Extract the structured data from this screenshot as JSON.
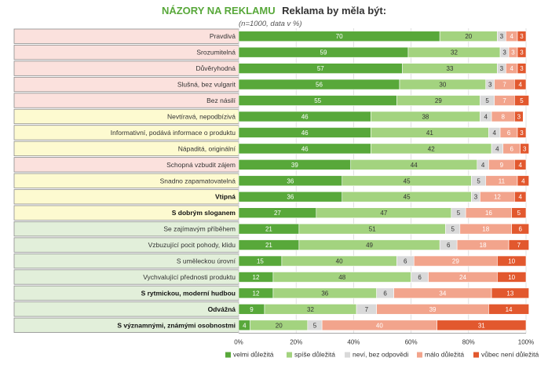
{
  "chart_data": {
    "type": "bar",
    "orientation": "horizontal",
    "stacked": true,
    "title_part1": "NÁZORY NA REKLAMU",
    "title_part2": "Reklama by měla být:",
    "subtitle": "(n=1000, data v %)",
    "xlabel": "",
    "ylabel": "",
    "xlim": [
      0,
      100
    ],
    "x_ticks": [
      "0%",
      "20%",
      "40%",
      "60%",
      "80%",
      "100%"
    ],
    "legend_position": "bottom",
    "categories": [
      "Pravdivá",
      "Srozumitelná",
      "Důvěryhodná",
      "Slušná, bez vulgarit",
      "Bez násilí",
      "Nevtíravá, nepodbízivá",
      "Informativní, podává informace o produktu",
      "Nápaditá, originální",
      "Schopná vzbudit zájem",
      "Snadno zapamatovatelná",
      "Vtipná",
      "S dobrým sloganem",
      "Se zajímavým příběhem",
      "Vzbuzující pocit pohody, klidu",
      "S uměleckou úrovní",
      "Vychvalující přednosti produktu",
      "S rytmickou, moderní hudbou",
      "Odvážná",
      "S významnými, známými osobnostmi"
    ],
    "bold_categories": [
      "Vtipná",
      "S dobrým sloganem",
      "S rytmickou, moderní hudbou",
      "Odvážná",
      "S významnými, známými osobnostmi"
    ],
    "row_backgrounds": [
      "#fbe1dd",
      "#fbe1dd",
      "#fbe1dd",
      "#fbe1dd",
      "#fbe1dd",
      "#fdfad0",
      "#fdfad0",
      "#fdfad0",
      "#fbe1dd",
      "#fdfad0",
      "#fdfad0",
      "#fdfad0",
      "#e2efda",
      "#e2efda",
      "#e2efda",
      "#e2efda",
      "#e2efda",
      "#e2efda",
      "#e2efda"
    ],
    "series": [
      {
        "name": "velmi důležitá",
        "color": "#58a83a",
        "label_color": "#ffffff",
        "values": [
          70,
          59,
          57,
          56,
          55,
          46,
          46,
          46,
          39,
          36,
          36,
          27,
          21,
          21,
          15,
          12,
          12,
          9,
          4
        ]
      },
      {
        "name": "spíše důležitá",
        "color": "#a3d37f",
        "label_color": "#333333",
        "values": [
          20,
          32,
          33,
          30,
          29,
          38,
          41,
          42,
          44,
          45,
          45,
          47,
          51,
          49,
          40,
          48,
          36,
          32,
          20
        ]
      },
      {
        "name": "neví, bez odpovědi",
        "color": "#d9d9d9",
        "label_color": "#333333",
        "values": [
          3,
          3,
          3,
          3,
          5,
          4,
          4,
          4,
          4,
          5,
          3,
          5,
          5,
          6,
          6,
          6,
          6,
          7,
          5
        ]
      },
      {
        "name": "málo důležitá",
        "color": "#f2a48c",
        "label_color": "#ffffff",
        "values": [
          4,
          3,
          4,
          7,
          7,
          8,
          6,
          6,
          9,
          11,
          12,
          16,
          18,
          18,
          29,
          24,
          34,
          39,
          40
        ]
      },
      {
        "name": "vůbec není důležitá",
        "color": "#e2582e",
        "label_color": "#ffffff",
        "values": [
          3,
          3,
          3,
          4,
          5,
          3,
          3,
          3,
          4,
          4,
          4,
          5,
          6,
          7,
          10,
          10,
          13,
          14,
          31
        ]
      }
    ]
  }
}
